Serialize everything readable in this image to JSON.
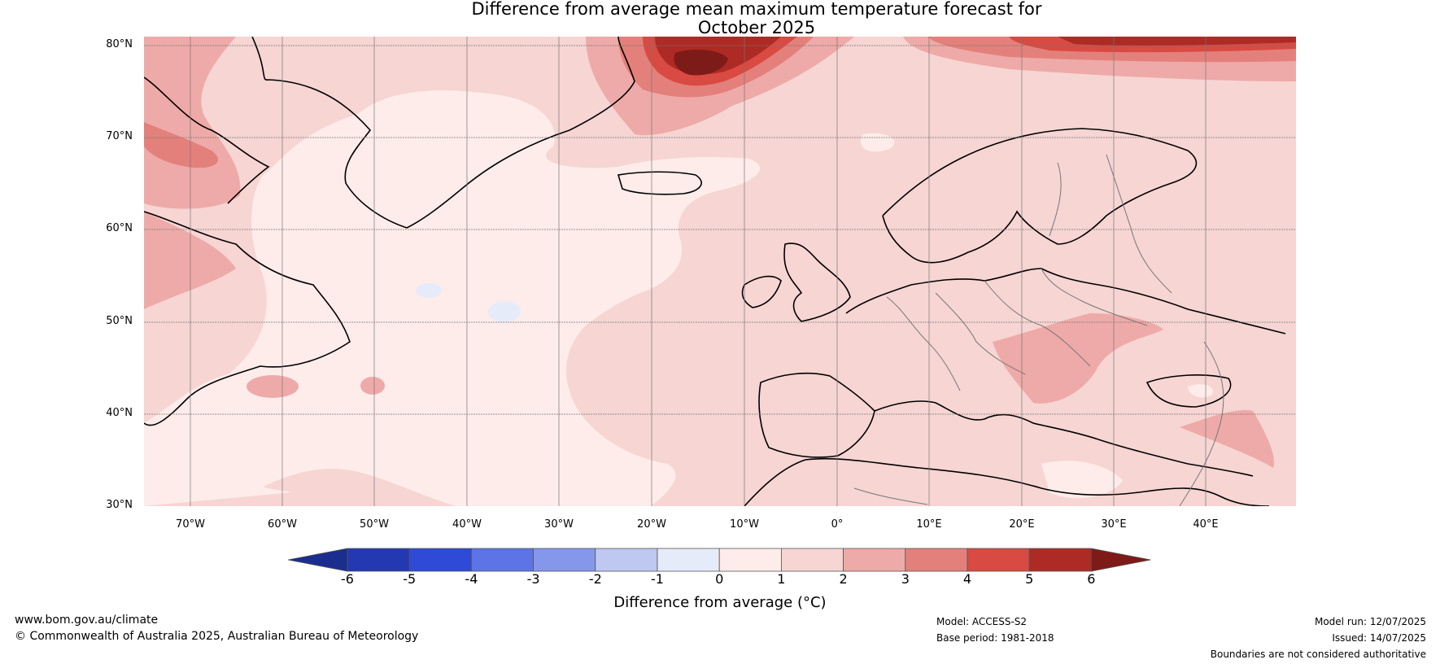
{
  "title_line1": "Difference from average mean maximum temperature forecast for",
  "title_line2": "October 2025",
  "map": {
    "lat_labels": [
      "80°N",
      "70°N",
      "60°N",
      "50°N",
      "40°N",
      "30°N"
    ],
    "lon_labels": [
      "70°W",
      "60°W",
      "50°W",
      "40°W",
      "30°W",
      "20°W",
      "10°W",
      "0°",
      "10°E",
      "20°E",
      "30°E",
      "40°E"
    ],
    "colors": {
      "c0_1": "#fdecea",
      "c1_2": "#f6d5d3",
      "c2_3": "#eeaaa8",
      "c3_4": "#e4807b",
      "c4_5": "#d84a42",
      "c5_6": "#ae2a24",
      "c_gt6": "#7d1b18",
      "cm1_0": "#e6ebfa"
    }
  },
  "colorbar": {
    "ticks": [
      "-6",
      "-5",
      "-4",
      "-3",
      "-2",
      "-1",
      "0",
      "1",
      "2",
      "3",
      "4",
      "5",
      "6"
    ],
    "colors": [
      "#1b2d8f",
      "#2438b2",
      "#2e4ad6",
      "#5c74e5",
      "#8497ea",
      "#bec8f1",
      "#e6ebfa",
      "#fdecea",
      "#f6d5d3",
      "#eeaaa8",
      "#e4807b",
      "#d84a42",
      "#ae2a24",
      "#7d1b18"
    ],
    "label": "Difference from average (°C)"
  },
  "footer": {
    "website": "www.bom.gov.au/climate",
    "copyright": "© Commonwealth of Australia 2025, Australian Bureau of Meteorology",
    "model": "Model: ACCESS-S2",
    "base_period": "Base period: 1981-2018",
    "model_run": "Model run: 12/07/2025",
    "issued": "Issued: 14/07/2025",
    "disclaimer": "Boundaries are not considered authoritative"
  }
}
